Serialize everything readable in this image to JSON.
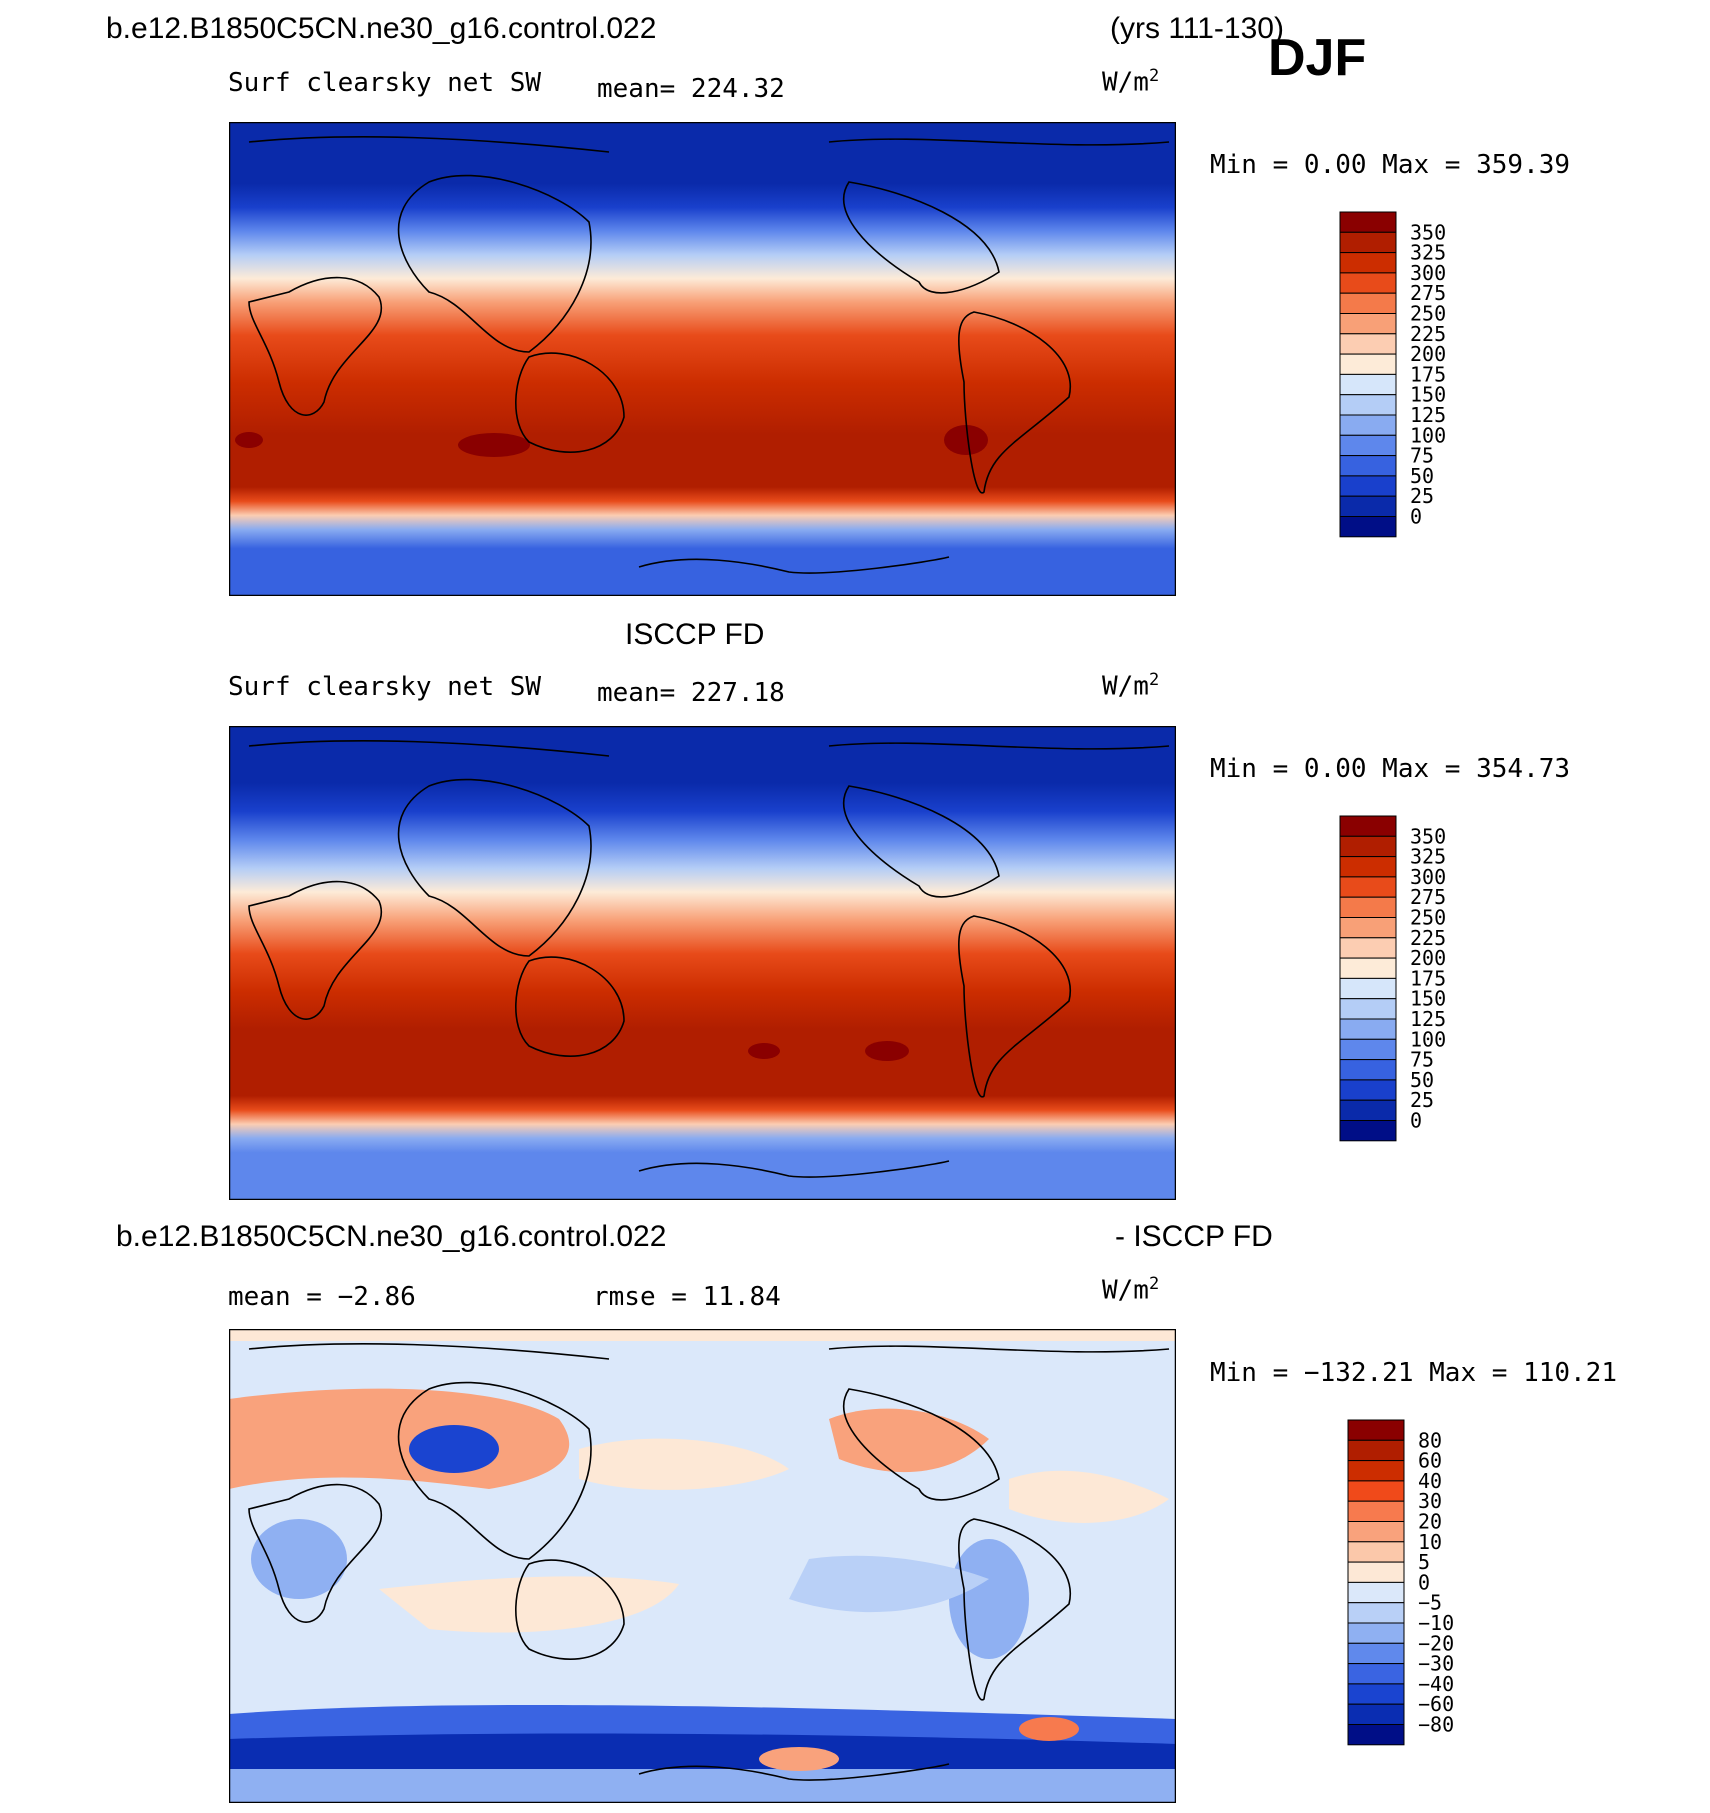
{
  "header": {
    "case_name": "b.e12.B1850C5CN.ne30_g16.control.022",
    "years": "(yrs 111-130)",
    "season": "DJF"
  },
  "panels": [
    {
      "title": "",
      "variable": "Surf clearsky net SW",
      "stat1": "mean= 224.32",
      "stat2": "",
      "units": "W/m",
      "units_exp": "2",
      "minmax": "Min =    0.00 Max = 359.39",
      "colorbar": {
        "labels": [
          "350",
          "325",
          "300",
          "275",
          "250",
          "225",
          "200",
          "175",
          "150",
          "125",
          "100",
          "75",
          "50",
          "25",
          "0"
        ],
        "colors": [
          "#8a0000",
          "#b01e00",
          "#cc2d00",
          "#e84b1a",
          "#f47a4a",
          "#f8a077",
          "#fccdb2",
          "#fdebd8",
          "#d6e6fa",
          "#b4cdf6",
          "#89abf1",
          "#5e87ec",
          "#3762e0",
          "#1940cc",
          "#0a2aaa",
          "#000e87"
        ]
      }
    },
    {
      "title": "ISCCP FD",
      "variable": "Surf clearsky net SW",
      "stat1": "mean= 227.18",
      "stat2": "",
      "units": "W/m",
      "units_exp": "2",
      "minmax": "Min =    0.00 Max = 354.73",
      "colorbar": {
        "labels": [
          "350",
          "325",
          "300",
          "275",
          "250",
          "225",
          "200",
          "175",
          "150",
          "125",
          "100",
          "75",
          "50",
          "25",
          "0"
        ],
        "colors": [
          "#8a0000",
          "#b01e00",
          "#cc2d00",
          "#e84b1a",
          "#f47a4a",
          "#f8a077",
          "#fccdb2",
          "#fdebd8",
          "#d6e6fa",
          "#b4cdf6",
          "#89abf1",
          "#5e87ec",
          "#3762e0",
          "#1940cc",
          "#0a2aaa",
          "#000e87"
        ]
      }
    },
    {
      "title_left": "b.e12.B1850C5CN.ne30_g16.control.022",
      "title_right": "- ISCCP FD",
      "variable": "",
      "stat1": "mean =   −2.86",
      "stat2": "rmse =   11.84",
      "units": "W/m",
      "units_exp": "2",
      "minmax": "Min = −132.21 Max = 110.21",
      "colorbar": {
        "labels": [
          "80",
          "60",
          "40",
          "30",
          "20",
          "10",
          "5",
          "0",
          "−5",
          "−10",
          "−20",
          "−30",
          "−40",
          "−60",
          "−80"
        ],
        "colors": [
          "#8a0000",
          "#b01e00",
          "#cc2d00",
          "#f04a1a",
          "#f77a4e",
          "#f9a27c",
          "#fbc8aa",
          "#fde8d6",
          "#dbe8fa",
          "#b9d0f7",
          "#8fb0f2",
          "#6089ec",
          "#3a64e2",
          "#1a44d0",
          "#0a2db2",
          "#000e87"
        ]
      }
    }
  ]
}
